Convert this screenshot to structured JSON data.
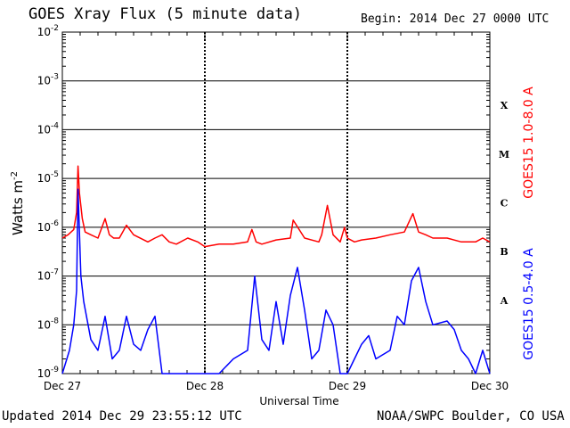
{
  "header": {
    "title": "GOES Xray Flux (5 minute data)",
    "begin": "Begin:  2014 Dec 27 0000 UTC"
  },
  "footer": {
    "updated": "Updated 2014 Dec 29 23:55:12 UTC",
    "credit": "NOAA/SWPC Boulder, CO USA"
  },
  "colors": {
    "long_channel": "#ff0000",
    "short_channel": "#0000ff",
    "axes": "#000000"
  },
  "chart_data": {
    "type": "line",
    "xlabel": "Universal Time",
    "ylabel": "Watts m",
    "ylabel_exponent": "-2",
    "y_scale": "log",
    "ylim": [
      1e-09,
      0.01
    ],
    "xlim": [
      0,
      3
    ],
    "y_tick_labels": [
      {
        "base": "10",
        "exp": "-9"
      },
      {
        "base": "10",
        "exp": "-8"
      },
      {
        "base": "10",
        "exp": "-7"
      },
      {
        "base": "10",
        "exp": "-6"
      },
      {
        "base": "10",
        "exp": "-5"
      },
      {
        "base": "10",
        "exp": "-4"
      },
      {
        "base": "10",
        "exp": "-3"
      },
      {
        "base": "10",
        "exp": "-2"
      }
    ],
    "x_tick_labels": [
      "Dec 27",
      "Dec 28",
      "Dec 29",
      "Dec 30"
    ],
    "flare_classes": [
      "A",
      "B",
      "C",
      "M",
      "X"
    ],
    "series": [
      {
        "name": "GOES15 1.0-8.0 A",
        "x": [
          0,
          0.04,
          0.08,
          0.1,
          0.11,
          0.12,
          0.14,
          0.16,
          0.2,
          0.25,
          0.3,
          0.33,
          0.36,
          0.4,
          0.45,
          0.5,
          0.6,
          0.65,
          0.7,
          0.75,
          0.8,
          0.88,
          0.95,
          1.0,
          1.1,
          1.2,
          1.3,
          1.33,
          1.36,
          1.4,
          1.5,
          1.6,
          1.62,
          1.7,
          1.8,
          1.82,
          1.86,
          1.9,
          1.95,
          1.98,
          2.0,
          2.05,
          2.1,
          2.2,
          2.3,
          2.4,
          2.46,
          2.5,
          2.55,
          2.6,
          2.7,
          2.8,
          2.9,
          2.95,
          3.0
        ],
        "values": [
          6e-07,
          7e-07,
          9e-07,
          2e-06,
          1.8e-05,
          5e-06,
          1.5e-06,
          8e-07,
          7e-07,
          6e-07,
          1.5e-06,
          7e-07,
          6e-07,
          6e-07,
          1.1e-06,
          7e-07,
          5e-07,
          6e-07,
          7e-07,
          5e-07,
          4.5e-07,
          6e-07,
          5e-07,
          4e-07,
          4.5e-07,
          4.5e-07,
          5e-07,
          9e-07,
          5e-07,
          4.5e-07,
          5.5e-07,
          6e-07,
          1.4e-06,
          6e-07,
          5e-07,
          7e-07,
          2.8e-06,
          7e-07,
          5e-07,
          1e-06,
          6e-07,
          5e-07,
          5.5e-07,
          6e-07,
          7e-07,
          8e-07,
          1.9e-06,
          8e-07,
          7e-07,
          6e-07,
          6e-07,
          5e-07,
          5e-07,
          6e-07,
          5e-07
        ]
      },
      {
        "name": "GOES15 0.5-4.0 A",
        "x": [
          0,
          0.05,
          0.08,
          0.1,
          0.11,
          0.13,
          0.15,
          0.2,
          0.25,
          0.3,
          0.35,
          0.4,
          0.45,
          0.5,
          0.55,
          0.6,
          0.65,
          0.7,
          0.75,
          0.8,
          0.9,
          1.0,
          1.1,
          1.2,
          1.3,
          1.35,
          1.4,
          1.45,
          1.5,
          1.55,
          1.6,
          1.65,
          1.7,
          1.75,
          1.8,
          1.85,
          1.9,
          1.95,
          2.0,
          2.05,
          2.1,
          2.15,
          2.2,
          2.3,
          2.35,
          2.4,
          2.45,
          2.5,
          2.55,
          2.6,
          2.7,
          2.75,
          2.8,
          2.85,
          2.9,
          2.95,
          3.0
        ],
        "values": [
          1e-09,
          3e-09,
          1e-08,
          5e-08,
          6e-06,
          1e-07,
          3e-08,
          5e-09,
          3e-09,
          1.5e-08,
          2e-09,
          3e-09,
          1.5e-08,
          4e-09,
          3e-09,
          8e-09,
          1.5e-08,
          1e-09,
          1e-09,
          1e-09,
          1e-09,
          1e-09,
          1e-09,
          2e-09,
          3e-09,
          1e-07,
          5e-09,
          3e-09,
          3e-08,
          4e-09,
          4e-08,
          1.5e-07,
          2e-08,
          2e-09,
          3e-09,
          2e-08,
          1e-08,
          1e-09,
          1e-09,
          2e-09,
          4e-09,
          6e-09,
          2e-09,
          3e-09,
          1.5e-08,
          1e-08,
          8e-08,
          1.5e-07,
          3e-08,
          1e-08,
          1.2e-08,
          8e-09,
          3e-09,
          2e-09,
          1e-09,
          3e-09,
          1e-09
        ]
      }
    ]
  }
}
